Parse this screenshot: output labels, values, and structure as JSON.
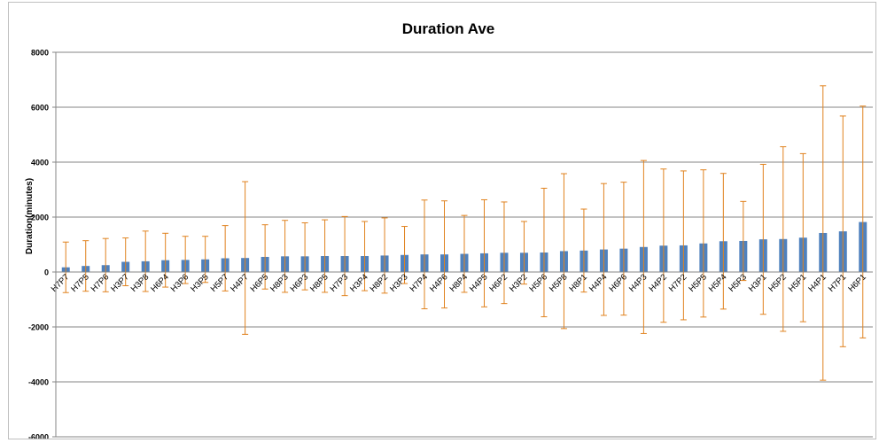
{
  "chart_data": {
    "type": "bar",
    "title": "Duration Ave",
    "xlabel": "",
    "ylabel": "Duration(minutes)",
    "ylim": [
      -6000,
      8000
    ],
    "yticks": [
      -6000,
      -4000,
      -2000,
      0,
      2000,
      4000,
      6000,
      8000
    ],
    "ytick_labels": [
      "-6000",
      "-4000",
      "-2000",
      "0",
      "2000",
      "4000",
      "6000",
      "8000"
    ],
    "grid": true,
    "legend": "none",
    "colors": {
      "bar": "#4f81bd",
      "error_bar": "#e0821e",
      "grid": "#868686"
    },
    "categories": [
      "H7P7",
      "H7P5",
      "H7P6",
      "H3P7",
      "H3P8",
      "H6P4",
      "H3P6",
      "H3P5",
      "H5P7",
      "H4P7",
      "H6P5",
      "H8P3",
      "H6P3",
      "H8P5",
      "H7P3",
      "H3P4",
      "H8P2",
      "H3P3",
      "H7P4",
      "H4P6",
      "H8P4",
      "H4P5",
      "H6P2",
      "H3P2",
      "H5P6",
      "H5P8",
      "H8P1",
      "H4P4",
      "H6P6",
      "H4P3",
      "H4P2",
      "H7P2",
      "H5P5",
      "H5P4",
      "H5P3",
      "H3P1",
      "H5P2",
      "H5P1",
      "H4P1",
      "H7P1",
      "H6P1"
    ],
    "values": [
      170,
      220,
      250,
      370,
      390,
      430,
      440,
      460,
      500,
      510,
      550,
      570,
      570,
      580,
      580,
      580,
      600,
      620,
      640,
      640,
      660,
      680,
      700,
      700,
      710,
      760,
      780,
      820,
      850,
      910,
      960,
      970,
      1040,
      1120,
      1130,
      1190,
      1200,
      1250,
      1420,
      1480,
      1820
    ],
    "error_plus": [
      920,
      920,
      970,
      870,
      1100,
      980,
      860,
      840,
      1190,
      2780,
      1170,
      1310,
      1220,
      1320,
      1440,
      1260,
      1370,
      1040,
      1980,
      1950,
      1400,
      1950,
      1850,
      1140,
      2340,
      2820,
      1510,
      2400,
      2420,
      3150,
      2790,
      2710,
      2680,
      2470,
      1440,
      2730,
      3360,
      3060,
      5360,
      4200,
      4220
    ],
    "error_minus": [
      920,
      920,
      970,
      870,
      1100,
      980,
      860,
      840,
      1190,
      2780,
      1170,
      1310,
      1220,
      1320,
      1440,
      1260,
      1370,
      1040,
      1980,
      1950,
      1400,
      1950,
      1850,
      1140,
      2340,
      2820,
      1510,
      2400,
      2420,
      3150,
      2790,
      2710,
      2680,
      2470,
      1440,
      2730,
      3360,
      3060,
      5360,
      4200,
      4220
    ]
  }
}
